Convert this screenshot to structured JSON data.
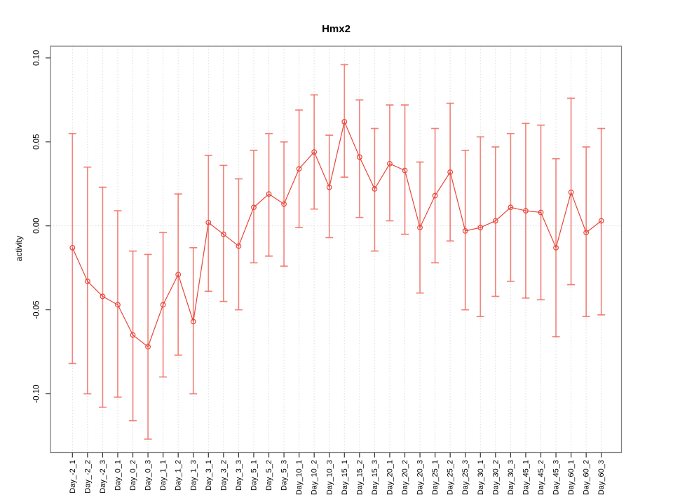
{
  "chart_data": {
    "type": "line",
    "subtype": "means-with-error-bars",
    "title": "Hmx2",
    "xlabel": "",
    "ylabel": "activity",
    "legend": "none",
    "grid": "vertical dotted gridline at every category; dotted horizontal line at y=0",
    "ylim": [
      -0.135,
      0.107
    ],
    "yticks": [
      -0.1,
      -0.05,
      0.0,
      0.05,
      0.1
    ],
    "ytick_labels": [
      "-0.10",
      "-0.05",
      "0.00",
      "0.05",
      "0.10"
    ],
    "categories": [
      "Day_-2_1",
      "Day_-2_2",
      "Day_-2_3",
      "Day_0_1",
      "Day_0_2",
      "Day_0_3",
      "Day_1_1",
      "Day_1_2",
      "Day_1_3",
      "Day_3_1",
      "Day_3_2",
      "Day_3_3",
      "Day_5_1",
      "Day_5_2",
      "Day_5_3",
      "Day_10_1",
      "Day_10_2",
      "Day_10_3",
      "Day_15_1",
      "Day_15_2",
      "Day_15_3",
      "Day_20_1",
      "Day_20_2",
      "Day_20_3",
      "Day_25_1",
      "Day_25_2",
      "Day_25_3",
      "Day_30_1",
      "Day_30_2",
      "Day_30_3",
      "Day_45_1",
      "Day_45_2",
      "Day_45_3",
      "Day_60_1",
      "Day_60_2",
      "Day_60_3"
    ],
    "series": [
      {
        "name": "activity",
        "marker": "open-circle",
        "values": [
          -0.013,
          -0.033,
          -0.042,
          -0.047,
          -0.065,
          -0.072,
          -0.047,
          -0.029,
          -0.057,
          0.002,
          -0.005,
          -0.012,
          0.011,
          0.019,
          0.013,
          0.034,
          0.044,
          0.023,
          0.062,
          0.041,
          0.022,
          0.037,
          0.033,
          -0.001,
          0.018,
          0.032,
          -0.003,
          -0.001,
          0.003,
          0.011,
          0.009,
          0.008,
          -0.013,
          0.02,
          -0.004,
          0.003
        ],
        "error_upper": [
          0.055,
          0.035,
          0.023,
          0.009,
          -0.015,
          -0.017,
          -0.004,
          0.019,
          -0.013,
          0.042,
          0.036,
          0.028,
          0.045,
          0.055,
          0.05,
          0.069,
          0.078,
          0.054,
          0.096,
          0.075,
          0.058,
          0.072,
          0.072,
          0.038,
          0.058,
          0.073,
          0.045,
          0.053,
          0.047,
          0.055,
          0.061,
          0.06,
          0.04,
          0.076,
          0.047,
          0.058
        ],
        "error_lower": [
          -0.082,
          -0.1,
          -0.108,
          -0.102,
          -0.116,
          -0.127,
          -0.09,
          -0.077,
          -0.1,
          -0.039,
          -0.045,
          -0.05,
          -0.022,
          -0.018,
          -0.024,
          -0.001,
          0.01,
          -0.007,
          0.029,
          0.005,
          -0.015,
          0.003,
          -0.005,
          -0.04,
          -0.022,
          -0.009,
          -0.05,
          -0.054,
          -0.042,
          -0.033,
          -0.043,
          -0.044,
          -0.066,
          -0.035,
          -0.054,
          -0.053
        ]
      }
    ],
    "colors": {
      "series_line": "#e8463a",
      "marker_stroke": "#e8463a",
      "error_bar": "#ef6e64",
      "gridline": "#dcdcdc",
      "zero_line": "#dcdcdc",
      "frame": "#808080",
      "tick": "#333333",
      "text": "#000000",
      "background": "#ffffff"
    }
  }
}
